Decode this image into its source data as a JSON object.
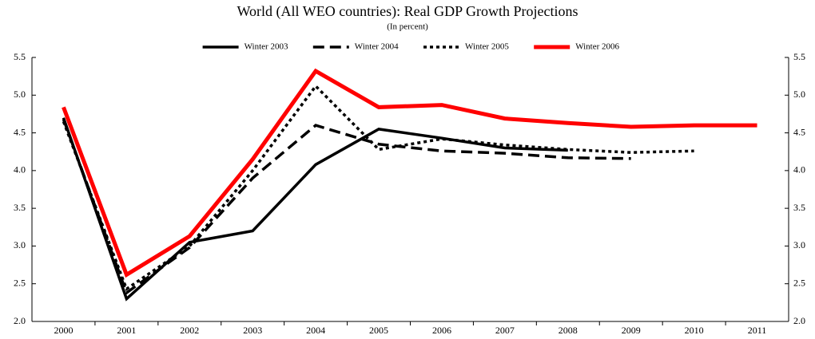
{
  "chart_data": {
    "type": "line",
    "title": "World (All WEO countries): Real GDP Growth Projections",
    "subtitle": "(In percent)",
    "categories": [
      "2000",
      "2001",
      "2002",
      "2003",
      "2004",
      "2005",
      "2006",
      "2007",
      "2008",
      "2009",
      "2010",
      "2011"
    ],
    "series": [
      {
        "name": "Winter 2003",
        "color": "#000000",
        "line_style": "solid",
        "values": [
          4.7,
          2.3,
          3.05,
          3.2,
          4.08,
          4.55,
          4.43,
          4.3,
          4.27,
          null,
          null,
          null
        ]
      },
      {
        "name": "Winter 2004",
        "color": "#000000",
        "line_style": "dashed",
        "values": [
          4.68,
          2.38,
          2.98,
          3.9,
          4.6,
          4.35,
          4.26,
          4.23,
          4.17,
          4.16,
          null,
          null
        ]
      },
      {
        "name": "Winter 2005",
        "color": "#000000",
        "line_style": "dotted",
        "values": [
          4.65,
          2.43,
          3.0,
          4.0,
          5.12,
          4.28,
          4.42,
          4.34,
          4.28,
          4.24,
          4.26,
          null
        ]
      },
      {
        "name": "Winter 2006",
        "color": "#ff0000",
        "line_style": "solid",
        "values": [
          4.84,
          2.62,
          3.13,
          4.15,
          5.32,
          4.84,
          4.87,
          4.69,
          4.63,
          4.58,
          4.6,
          4.6
        ]
      }
    ],
    "ylim": [
      2.0,
      5.5
    ],
    "yticks": [
      {
        "value": 2,
        "label": "2.0"
      },
      2.5,
      {
        "value": 3,
        "label": "3.0"
      },
      3.5,
      {
        "value": 4,
        "label": "4.0"
      },
      4.5,
      {
        "value": 5,
        "label": "5.0"
      },
      5.5
    ],
    "y2lim": [
      2.0,
      5.5
    ],
    "y2ticks": [
      {
        "value": 2,
        "label": "2.0"
      },
      2.5,
      {
        "value": 3,
        "label": "3.0"
      },
      3.5,
      {
        "value": 4,
        "label": "4.0"
      },
      4.5,
      {
        "value": 5,
        "label": "5.0"
      },
      5.5
    ],
    "grid": false,
    "legend": "top"
  }
}
